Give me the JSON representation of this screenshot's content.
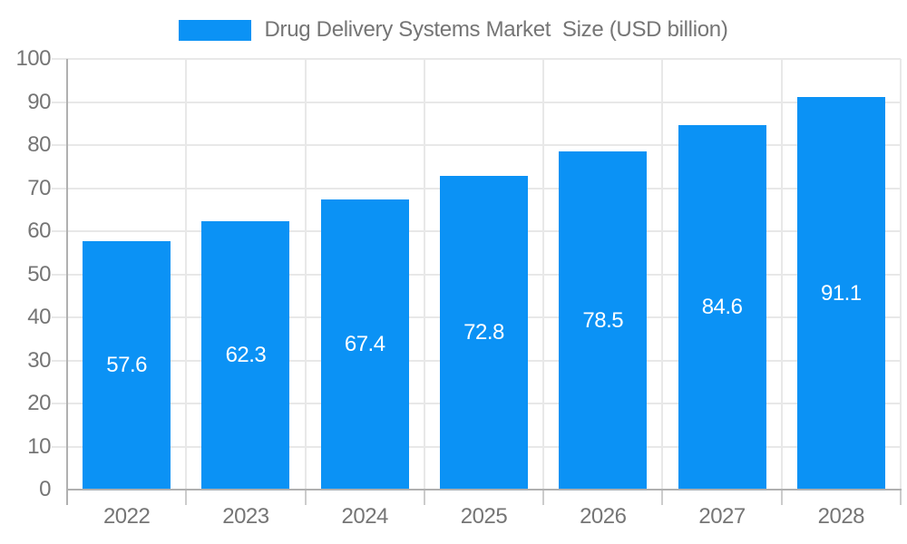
{
  "chart_data": {
    "type": "bar",
    "title": "Drug Delivery Systems Market  Size (USD billion)",
    "categories": [
      "2022",
      "2023",
      "2024",
      "2025",
      "2026",
      "2027",
      "2028"
    ],
    "values": [
      57.6,
      62.3,
      67.4,
      72.8,
      78.5,
      84.6,
      91.1
    ],
    "value_labels": [
      "57.6",
      "62.3",
      "67.4",
      "72.8",
      "78.5",
      "84.6",
      "91.1"
    ],
    "xlabel": "",
    "ylabel": "",
    "ylim": [
      0,
      100
    ],
    "y_tick_step": 10,
    "y_tick_labels": [
      "0",
      "10",
      "20",
      "30",
      "40",
      "50",
      "60",
      "70",
      "80",
      "90",
      "100"
    ],
    "grid": "on",
    "legend_position": "top",
    "colors": {
      "bar": "#0b92f5",
      "value_label": "#ffffff",
      "axis_text": "#757575",
      "legend_text": "#757575",
      "gridline": "#e8e8e8",
      "axis_line": "#b0b0b0",
      "minor_tick": "#cccccc"
    }
  }
}
